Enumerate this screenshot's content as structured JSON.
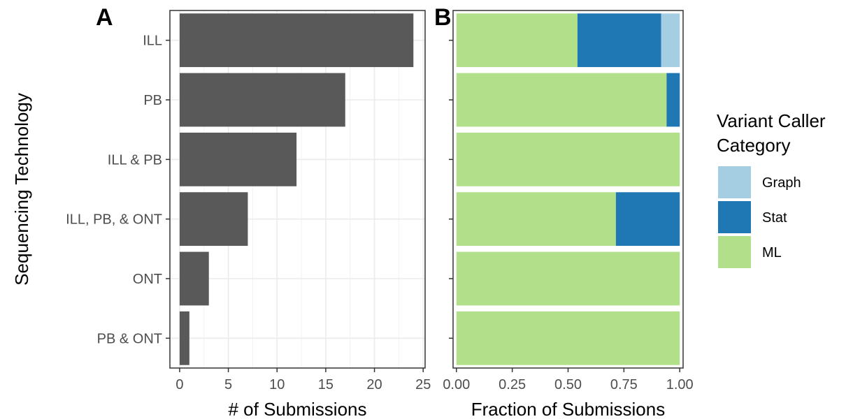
{
  "chart_data": [
    {
      "panel": "A",
      "type": "bar",
      "orientation": "horizontal",
      "categories": [
        "ILL",
        "PB",
        "ILL & PB",
        "ILL, PB, & ONT",
        "ONT",
        "PB & ONT"
      ],
      "values": [
        24,
        17,
        12,
        7,
        3,
        1
      ],
      "xlabel": "# of Submissions",
      "ylabel": "Sequencing Technology",
      "xlim": [
        -1,
        25.2
      ],
      "xticks": [
        0,
        5,
        10,
        15,
        20,
        25
      ],
      "xtick_labels": [
        "0",
        "5",
        "10",
        "15",
        "20",
        "25"
      ],
      "grid": true,
      "bar_color": "#595959"
    },
    {
      "panel": "B",
      "type": "bar",
      "orientation": "horizontal",
      "stacked": true,
      "categories": [
        "ILL",
        "PB",
        "ILL & PB",
        "ILL, PB, & ONT",
        "ONT",
        "PB & ONT"
      ],
      "series": [
        {
          "name": "ML",
          "color": "#b2df8a",
          "values": [
            0.542,
            0.941,
            1.0,
            0.714,
            1.0,
            1.0
          ]
        },
        {
          "name": "Stat",
          "color": "#1f78b4",
          "values": [
            0.375,
            0.059,
            0.0,
            0.286,
            0.0,
            0.0
          ]
        },
        {
          "name": "Graph",
          "color": "#a6cee3",
          "values": [
            0.083,
            0.0,
            0.0,
            0.0,
            0.0,
            0.0
          ]
        }
      ],
      "xlabel": "Fraction of Submissions",
      "xlim": [
        -0.015,
        1.015
      ],
      "xticks": [
        0,
        0.25,
        0.5,
        0.75,
        1.0
      ],
      "xtick_labels": [
        "0.00",
        "0.25",
        "0.50",
        "0.75",
        "1.00"
      ],
      "grid": false,
      "legend": {
        "title": [
          "Variant Caller",
          "Category"
        ],
        "position": "right",
        "entries": [
          {
            "name": "Graph",
            "color": "#a6cee3"
          },
          {
            "name": "Stat",
            "color": "#1f78b4"
          },
          {
            "name": "ML",
            "color": "#b2df8a"
          }
        ]
      }
    }
  ]
}
